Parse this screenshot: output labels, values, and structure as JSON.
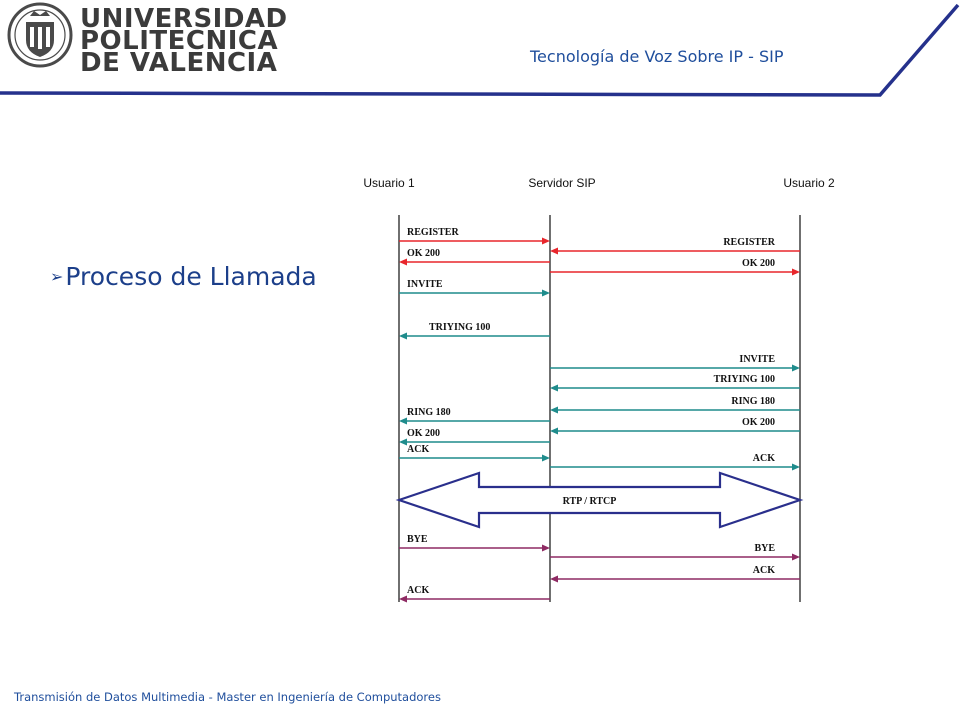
{
  "header": {
    "logo_lines": [
      "UNIVERSIDAD",
      "POLITECNICA",
      "DE VALENCIA"
    ],
    "subject": "Tecnología de Voz Sobre IP - SIP"
  },
  "content": {
    "bullet": "Proceso de Llamada"
  },
  "footer": {
    "text": "Transmisión de Datos Multimedia - Master en Ingeniería de Computadores"
  },
  "diagram": {
    "entities": [
      "Usuario 1",
      "Servidor SIP",
      "Usuario 2"
    ],
    "colors": {
      "red": "#e8262c",
      "teal": "#1f8c8c",
      "navy": "#2a2f8c",
      "purple": "#8e2a63"
    },
    "messages": [
      {
        "label": "REGISTER",
        "from": 0,
        "to": 1,
        "color": "red"
      },
      {
        "label": "REGISTER",
        "from": 2,
        "to": 1,
        "color": "red"
      },
      {
        "label": "OK 200",
        "from": 1,
        "to": 0,
        "color": "red"
      },
      {
        "label": "OK 200",
        "from": 1,
        "to": 2,
        "color": "red"
      },
      {
        "label": "INVITE",
        "from": 0,
        "to": 1,
        "color": "teal"
      },
      {
        "label": "TRIYING  100",
        "from": 1,
        "to": 0,
        "color": "teal"
      },
      {
        "label": "INVITE",
        "from": 1,
        "to": 2,
        "color": "teal"
      },
      {
        "label": "TRIYING  100",
        "from": 2,
        "to": 1,
        "color": "teal"
      },
      {
        "label": "RING  180",
        "from": 2,
        "to": 1,
        "color": "teal"
      },
      {
        "label": "RING  180",
        "from": 1,
        "to": 0,
        "color": "teal"
      },
      {
        "label": "OK 200",
        "from": 2,
        "to": 1,
        "color": "teal"
      },
      {
        "label": "OK 200",
        "from": 1,
        "to": 0,
        "color": "teal"
      },
      {
        "label": "ACK",
        "from": 0,
        "to": 1,
        "color": "teal"
      },
      {
        "label": "ACK",
        "from": 1,
        "to": 2,
        "color": "teal"
      },
      {
        "label": "RTP / RTCP",
        "from": 0,
        "to": 2,
        "color": "navy"
      },
      {
        "label": "BYE",
        "from": 0,
        "to": 1,
        "color": "purple"
      },
      {
        "label": "BYE",
        "from": 1,
        "to": 2,
        "color": "purple"
      },
      {
        "label": "ACK",
        "from": 2,
        "to": 1,
        "color": "purple"
      },
      {
        "label": "ACK",
        "from": 1,
        "to": 0,
        "color": "purple"
      }
    ]
  }
}
